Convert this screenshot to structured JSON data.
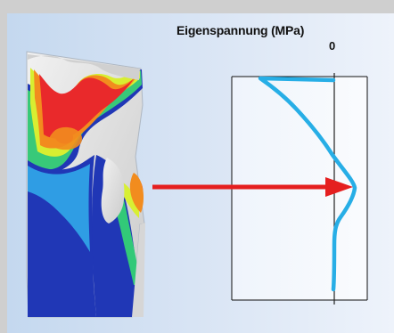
{
  "title": "Eigenspannung (MPa)",
  "zero_label": "0",
  "colors": {
    "background": "#cfcfcf",
    "panel_light": "#eef3fb",
    "panel_blue": "#c4d8ef",
    "stress_curve": "#27aee6",
    "arrow": "#e51f1f",
    "fea_blue": "#2037b6",
    "fea_green": "#32c978",
    "fea_yellow": "#d8ef34",
    "fea_orange": "#f28c1e",
    "fea_red": "#e9292b",
    "fea_gray": "#bdbdbd"
  }
}
